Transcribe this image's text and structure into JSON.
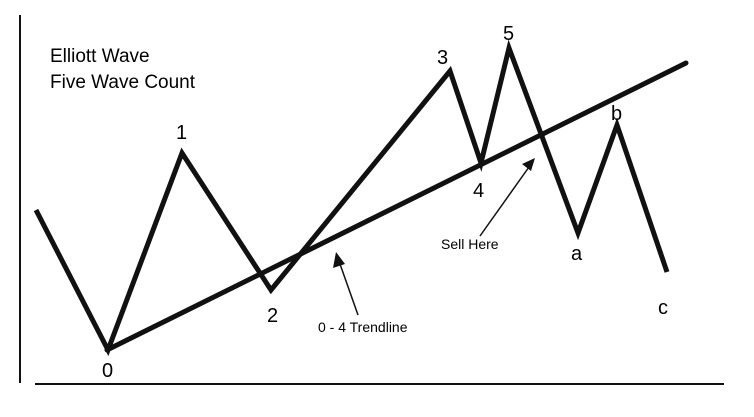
{
  "title": {
    "line1": "Elliott Wave",
    "line2": "Five Wave Count"
  },
  "points": [
    {
      "label": "0"
    },
    {
      "label": "1"
    },
    {
      "label": "2"
    },
    {
      "label": "3"
    },
    {
      "label": "4"
    },
    {
      "label": "5"
    },
    {
      "label": "a"
    },
    {
      "label": "b"
    },
    {
      "label": "c"
    }
  ],
  "annotations": {
    "trendline": "0 - 4 Trendline",
    "sell": "Sell Here"
  },
  "colors": {
    "line": "#111111",
    "background": "#ffffff"
  }
}
